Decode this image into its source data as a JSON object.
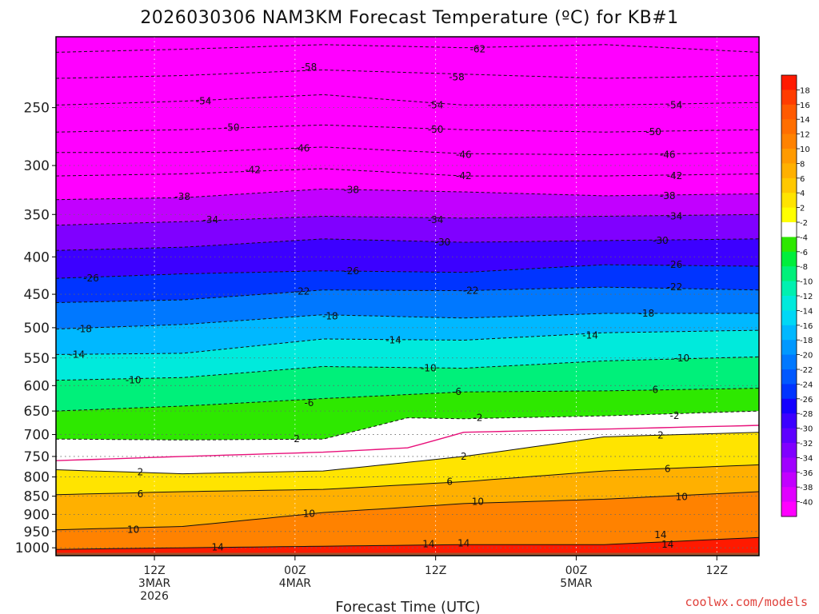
{
  "chart_data": {
    "type": "heatmap",
    "title": "2026030306 NAM3KM Forecast Temperature (ºC) for KB#1",
    "xlabel": "Forecast Time (UTC)",
    "ylabel": "",
    "credit": "coolwx.com/models",
    "x_range_hours": [
      -8,
      92
    ],
    "y_range_hpa": [
      200,
      1025
    ],
    "y_ticks": [
      250,
      300,
      350,
      400,
      450,
      500,
      550,
      600,
      650,
      700,
      750,
      800,
      850,
      900,
      950,
      1000
    ],
    "y_tick_labels": [
      "250",
      "300",
      "350",
      "400",
      "450",
      "500",
      "550",
      "600",
      "650",
      "700",
      "750",
      "800",
      "850",
      "900",
      "950",
      "1000"
    ],
    "x_ticks": [
      {
        "hour": 6,
        "lines": [
          "12Z",
          "3MAR",
          "2026"
        ]
      },
      {
        "hour": 26,
        "lines": [
          "00Z",
          "4MAR"
        ]
      },
      {
        "hour": 46,
        "lines": [
          "12Z"
        ]
      },
      {
        "hour": 66,
        "lines": [
          "00Z",
          "5MAR"
        ]
      },
      {
        "hour": 86,
        "lines": [
          "12Z"
        ]
      }
    ],
    "colorbar": {
      "labels": [
        "18",
        "16",
        "14",
        "12",
        "10",
        "8",
        "6",
        "4",
        "2",
        "-2",
        "-4",
        "-6",
        "-8",
        "-10",
        "-12",
        "-14",
        "-16",
        "-18",
        "-20",
        "-22",
        "-24",
        "-26",
        "-28",
        "-30",
        "-32",
        "-34",
        "-36",
        "-38",
        "-40"
      ],
      "colors": [
        "#ff1a00",
        "#ff3c00",
        "#ff5a00",
        "#ff6e00",
        "#ff8200",
        "#ff9a00",
        "#ffb000",
        "#ffc800",
        "#ffe400",
        "#ffff00",
        "#ffffff",
        "#2ee800",
        "#00ee3c",
        "#00f07a",
        "#00f0b0",
        "#00eadc",
        "#00d8f6",
        "#00b8ff",
        "#0098ff",
        "#0078ff",
        "#0058ff",
        "#0034ff",
        "#1400ff",
        "#3c00ff",
        "#5e00ff",
        "#8000ff",
        "#a000ff",
        "#c200ff",
        "#e000ff",
        "#ff00ff"
      ]
    },
    "isotherm_levels": [
      -62,
      -58,
      -54,
      -50,
      -46,
      -42,
      -38,
      -34,
      -30,
      -26,
      -22,
      -18,
      -14,
      -10,
      -6,
      -2,
      2,
      6,
      10,
      14
    ],
    "zero_isotherm_color": "#e8107a",
    "isotherms": [
      {
        "t": -62,
        "hours": [
          -8,
          10,
          30,
          50,
          70,
          92
        ],
        "p": [
          210,
          208,
          205,
          207,
          205,
          210
        ]
      },
      {
        "t": -58,
        "hours": [
          -8,
          10,
          30,
          50,
          70,
          92
        ],
        "p": [
          228,
          226,
          222,
          225,
          228,
          226
        ]
      },
      {
        "t": -54,
        "hours": [
          -8,
          10,
          30,
          50,
          70,
          92
        ],
        "p": [
          248,
          245,
          240,
          248,
          248,
          246
        ]
      },
      {
        "t": -50,
        "hours": [
          -8,
          10,
          30,
          50,
          70,
          92
        ],
        "p": [
          270,
          268,
          264,
          268,
          270,
          268
        ]
      },
      {
        "t": -46,
        "hours": [
          -8,
          10,
          30,
          50,
          70,
          92
        ],
        "p": [
          288,
          288,
          283,
          289,
          290,
          288
        ]
      },
      {
        "t": -42,
        "hours": [
          -8,
          10,
          30,
          50,
          70,
          92
        ],
        "p": [
          310,
          308,
          303,
          310,
          310,
          308
        ]
      },
      {
        "t": -38,
        "hours": [
          -8,
          10,
          30,
          50,
          70,
          92
        ],
        "p": [
          334,
          332,
          323,
          326,
          330,
          328
        ]
      },
      {
        "t": -34,
        "hours": [
          -8,
          10,
          30,
          50,
          70,
          92
        ],
        "p": [
          362,
          358,
          352,
          354,
          352,
          350
        ]
      },
      {
        "t": -30,
        "hours": [
          -8,
          10,
          30,
          50,
          70,
          92
        ],
        "p": [
          392,
          388,
          378,
          382,
          380,
          378
        ]
      },
      {
        "t": -26,
        "hours": [
          -8,
          10,
          30,
          50,
          70,
          92
        ],
        "p": [
          428,
          422,
          418,
          420,
          410,
          412
        ]
      },
      {
        "t": -22,
        "hours": [
          -8,
          10,
          30,
          50,
          70,
          92
        ],
        "p": [
          462,
          458,
          444,
          445,
          440,
          444
        ]
      },
      {
        "t": -18,
        "hours": [
          -8,
          10,
          30,
          50,
          70,
          92
        ],
        "p": [
          502,
          495,
          480,
          485,
          478,
          478
        ]
      },
      {
        "t": -14,
        "hours": [
          -8,
          10,
          30,
          50,
          70,
          92
        ],
        "p": [
          544,
          542,
          518,
          520,
          508,
          504
        ]
      },
      {
        "t": -10,
        "hours": [
          -8,
          10,
          30,
          50,
          70,
          92
        ],
        "p": [
          590,
          585,
          565,
          568,
          555,
          548
        ]
      },
      {
        "t": -6,
        "hours": [
          -8,
          10,
          30,
          50,
          70,
          92
        ],
        "p": [
          650,
          640,
          625,
          612,
          610,
          605
        ]
      },
      {
        "t": -2,
        "hours": [
          -8,
          10,
          30,
          42,
          50,
          70,
          92
        ],
        "p": [
          710,
          712,
          710,
          664,
          666,
          660,
          650
        ]
      },
      {
        "t": 0,
        "hours": [
          -8,
          10,
          30,
          42,
          50,
          70,
          92
        ],
        "p": [
          760,
          750,
          740,
          730,
          695,
          688,
          680
        ]
      },
      {
        "t": 2,
        "hours": [
          -8,
          10,
          30,
          50,
          70,
          92
        ],
        "p": [
          782,
          792,
          785,
          750,
          705,
          695
        ]
      },
      {
        "t": 6,
        "hours": [
          -8,
          10,
          30,
          50,
          70,
          92
        ],
        "p": [
          846,
          838,
          832,
          812,
          785,
          770
        ]
      },
      {
        "t": 10,
        "hours": [
          -8,
          10,
          30,
          50,
          70,
          92
        ],
        "p": [
          945,
          935,
          895,
          870,
          858,
          838
        ]
      },
      {
        "t": 14,
        "hours": [
          -8,
          10,
          30,
          50,
          70,
          92
        ],
        "p": [
          1005,
          1000,
          995,
          990,
          990,
          968
        ]
      }
    ],
    "contour_labels": [
      {
        "text": "-62",
        "hour": 52,
        "p": 208
      },
      {
        "text": "-58",
        "hour": 28,
        "p": 220
      },
      {
        "text": "-58",
        "hour": 49,
        "p": 227
      },
      {
        "text": "-54",
        "hour": 13,
        "p": 245
      },
      {
        "text": "-54",
        "hour": 46,
        "p": 248
      },
      {
        "text": "-54",
        "hour": 80,
        "p": 248
      },
      {
        "text": "-50",
        "hour": 17,
        "p": 266
      },
      {
        "text": "-50",
        "hour": 46,
        "p": 268
      },
      {
        "text": "-50",
        "hour": 77,
        "p": 270
      },
      {
        "text": "-46",
        "hour": 27,
        "p": 284
      },
      {
        "text": "-46",
        "hour": 50,
        "p": 290
      },
      {
        "text": "-46",
        "hour": 79,
        "p": 290
      },
      {
        "text": "-42",
        "hour": 20,
        "p": 304
      },
      {
        "text": "-42",
        "hour": 50,
        "p": 310
      },
      {
        "text": "-42",
        "hour": 80,
        "p": 310
      },
      {
        "text": "-38",
        "hour": 10,
        "p": 331
      },
      {
        "text": "-38",
        "hour": 34,
        "p": 324
      },
      {
        "text": "-38",
        "hour": 79,
        "p": 330
      },
      {
        "text": "-34",
        "hour": 14,
        "p": 356
      },
      {
        "text": "-34",
        "hour": 46,
        "p": 356
      },
      {
        "text": "-34",
        "hour": 80,
        "p": 352
      },
      {
        "text": "-30",
        "hour": 47,
        "p": 382
      },
      {
        "text": "-30",
        "hour": 78,
        "p": 380
      },
      {
        "text": "-26",
        "hour": -3,
        "p": 428
      },
      {
        "text": "-26",
        "hour": 34,
        "p": 418
      },
      {
        "text": "-26",
        "hour": 80,
        "p": 410
      },
      {
        "text": "-22",
        "hour": 27,
        "p": 446
      },
      {
        "text": "-22",
        "hour": 51,
        "p": 445
      },
      {
        "text": "-22",
        "hour": 80,
        "p": 440
      },
      {
        "text": "-18",
        "hour": -4,
        "p": 502
      },
      {
        "text": "-18",
        "hour": 31,
        "p": 482
      },
      {
        "text": "-18",
        "hour": 76,
        "p": 478
      },
      {
        "text": "-14",
        "hour": -5,
        "p": 544
      },
      {
        "text": "-14",
        "hour": 40,
        "p": 520
      },
      {
        "text": "-14",
        "hour": 68,
        "p": 512
      },
      {
        "text": "-10",
        "hour": 3,
        "p": 590
      },
      {
        "text": "-10",
        "hour": 45,
        "p": 568
      },
      {
        "text": "-10",
        "hour": 81,
        "p": 550
      },
      {
        "text": "-6",
        "hour": 28,
        "p": 634
      },
      {
        "text": "-6",
        "hour": 49,
        "p": 612
      },
      {
        "text": "-6",
        "hour": 77,
        "p": 608
      },
      {
        "text": "-2",
        "hour": 26,
        "p": 710
      },
      {
        "text": "-2",
        "hour": 52,
        "p": 664
      },
      {
        "text": "-2",
        "hour": 80,
        "p": 660
      },
      {
        "text": "2",
        "hour": 4,
        "p": 788
      },
      {
        "text": "2",
        "hour": 50,
        "p": 750
      },
      {
        "text": "2",
        "hour": 78,
        "p": 702
      },
      {
        "text": "6",
        "hour": 4,
        "p": 844
      },
      {
        "text": "6",
        "hour": 48,
        "p": 812
      },
      {
        "text": "6",
        "hour": 79,
        "p": 780
      },
      {
        "text": "10",
        "hour": 28,
        "p": 898
      },
      {
        "text": "10",
        "hour": 3,
        "p": 945
      },
      {
        "text": "10",
        "hour": 52,
        "p": 865
      },
      {
        "text": "10",
        "hour": 81,
        "p": 852
      },
      {
        "text": "14",
        "hour": 15,
        "p": 998
      },
      {
        "text": "14",
        "hour": 45,
        "p": 988
      },
      {
        "text": "14",
        "hour": 50,
        "p": 986
      },
      {
        "text": "14",
        "hour": 78,
        "p": 960
      },
      {
        "text": "14",
        "hour": 79,
        "p": 990
      }
    ]
  }
}
